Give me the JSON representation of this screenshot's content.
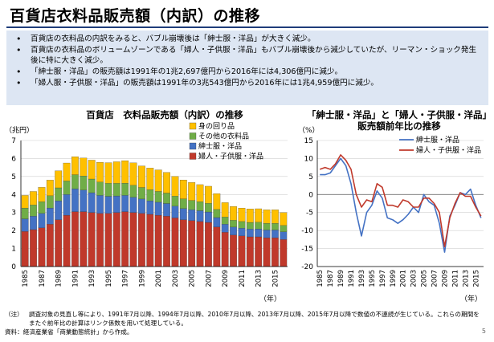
{
  "slide": {
    "title": "百貨店衣料品販売額（内訳）の推移",
    "bullets": [
      "百貨店の衣料品の内訳をみると、バブル崩壊後は「紳士服・洋品」が大きく減少。",
      "百貨店の衣料品のボリュームゾーンである「婦人・子供服・洋品」もバブル崩壊後から減少していたが、リーマン・ショック発生後に特に大きく減少。",
      "「紳士服・洋品」の販売額は1991年の1兆2,697億円から2016年には4,306億円に減少。",
      "「婦人服・子供服・洋品」の販売額は1991年の3兆543億円から2016年には1兆4,959億円に減少。"
    ],
    "note_label": "（注）",
    "note": "調査対象の見直し等により、1991年7月以降、1994年7月以降、2010年7月以降、2013年7月以降、2015年7月以降で数値の不連続が生じている。これらの期間をまたぐ前年比の計算はリンク係数を用いて処理している。",
    "source": "資料：経済産業省「商業動態統計」から作成。",
    "page_number": "5"
  },
  "chart_data": [
    {
      "type": "bar",
      "stacked": true,
      "title": "百貨店　衣料品販売額（内訳）の推移",
      "ylabel": "（兆円）",
      "xlabel": "（年）",
      "ylim": [
        0,
        7
      ],
      "yticks": [
        0,
        1,
        2,
        3,
        4,
        5,
        6,
        7
      ],
      "legend_position": "top-right",
      "x": [
        1985,
        1986,
        1987,
        1988,
        1989,
        1990,
        1991,
        1992,
        1993,
        1994,
        1995,
        1996,
        1997,
        1998,
        1999,
        2000,
        2001,
        2002,
        2003,
        2004,
        2005,
        2006,
        2007,
        2008,
        2009,
        2010,
        2011,
        2012,
        2013,
        2014,
        2015,
        2016
      ],
      "xtick_labels": [
        "1985",
        "1987",
        "1989",
        "1991",
        "1993",
        "1995",
        "1997",
        "1999",
        "2001",
        "2003",
        "2005",
        "2007",
        "2009",
        "2011",
        "2013",
        "2015"
      ],
      "series": [
        {
          "name": "婦人・子供服・洋品",
          "color": "#c0392b",
          "values": [
            1.95,
            2.05,
            2.15,
            2.35,
            2.6,
            2.85,
            3.05,
            3.05,
            3.0,
            2.95,
            2.95,
            3.0,
            3.05,
            3.0,
            2.95,
            2.9,
            2.85,
            2.8,
            2.7,
            2.6,
            2.55,
            2.5,
            2.45,
            2.2,
            1.9,
            1.75,
            1.7,
            1.65,
            1.65,
            1.6,
            1.6,
            1.5
          ]
        },
        {
          "name": "紳士服・洋品",
          "color": "#4472c4",
          "values": [
            0.7,
            0.75,
            0.8,
            0.9,
            1.05,
            1.15,
            1.27,
            1.2,
            1.1,
            1.0,
            0.95,
            0.92,
            0.9,
            0.85,
            0.8,
            0.75,
            0.72,
            0.7,
            0.65,
            0.62,
            0.6,
            0.6,
            0.58,
            0.52,
            0.45,
            0.44,
            0.43,
            0.43,
            0.44,
            0.43,
            0.43,
            0.43
          ]
        },
        {
          "name": "その他の衣料品",
          "color": "#70ad47",
          "values": [
            0.6,
            0.62,
            0.65,
            0.68,
            0.72,
            0.75,
            0.78,
            0.78,
            0.76,
            0.74,
            0.72,
            0.7,
            0.68,
            0.66,
            0.64,
            0.62,
            0.6,
            0.58,
            0.56,
            0.54,
            0.52,
            0.5,
            0.48,
            0.45,
            0.4,
            0.38,
            0.37,
            0.37,
            0.37,
            0.37,
            0.37,
            0.35
          ]
        },
        {
          "name": "身の回り品",
          "color": "#ffc000",
          "values": [
            0.7,
            0.75,
            0.8,
            0.87,
            0.95,
            1.0,
            1.0,
            1.0,
            1.05,
            1.1,
            1.15,
            1.2,
            1.25,
            1.25,
            1.2,
            1.2,
            1.2,
            1.15,
            1.1,
            1.05,
            1.0,
            0.95,
            0.95,
            0.88,
            0.8,
            0.77,
            0.75,
            0.75,
            0.75,
            0.75,
            0.75,
            0.72
          ]
        }
      ]
    },
    {
      "type": "line",
      "title": "「紳士服・洋品」と「婦人・子供服・洋品」販売額前年比の推移",
      "ylabel": "（%）",
      "xlabel": "（年）",
      "ylim": [
        -20,
        15
      ],
      "yticks": [
        15,
        10,
        5,
        0,
        -5,
        -10,
        -15,
        -20
      ],
      "legend_position": "top-right",
      "x": [
        1985,
        1986,
        1987,
        1988,
        1989,
        1990,
        1991,
        1992,
        1993,
        1994,
        1995,
        1996,
        1997,
        1998,
        1999,
        2000,
        2001,
        2002,
        2003,
        2004,
        2005,
        2006,
        2007,
        2008,
        2009,
        2010,
        2011,
        2012,
        2013,
        2014,
        2015,
        2016
      ],
      "xtick_labels": [
        "1985",
        "1987",
        "1989",
        "1991",
        "1993",
        "1995",
        "1997",
        "1999",
        "2001",
        "2003",
        "2005",
        "2007",
        "2009",
        "2011",
        "2013",
        "2015"
      ],
      "series": [
        {
          "name": "紳士服・洋品",
          "color": "#4472c4",
          "values": [
            5.5,
            5.5,
            6.0,
            8.0,
            10.0,
            8.0,
            3.0,
            -5.0,
            -11.5,
            -5.0,
            -3.0,
            1.0,
            -1.0,
            -6.5,
            -7.0,
            -8.0,
            -7.0,
            -5.5,
            -3.5,
            -5.0,
            0.0,
            -2.0,
            -3.0,
            -8.0,
            -16.0,
            -6.0,
            -3.0,
            0.5,
            0.0,
            1.5,
            -3.0,
            -6.5
          ]
        },
        {
          "name": "婦人・子供服・洋品",
          "color": "#c0392b",
          "values": [
            7.0,
            7.5,
            7.0,
            8.5,
            11.0,
            9.5,
            7.0,
            0.0,
            -3.5,
            -1.5,
            -2.0,
            3.0,
            2.0,
            -3.0,
            -3.0,
            -3.5,
            -1.5,
            -2.0,
            -3.5,
            -3.5,
            -1.0,
            -1.0,
            -2.5,
            -5.0,
            -14.5,
            -6.5,
            -2.5,
            0.5,
            -0.5,
            -0.5,
            -3.5,
            -6.0
          ]
        }
      ]
    }
  ]
}
